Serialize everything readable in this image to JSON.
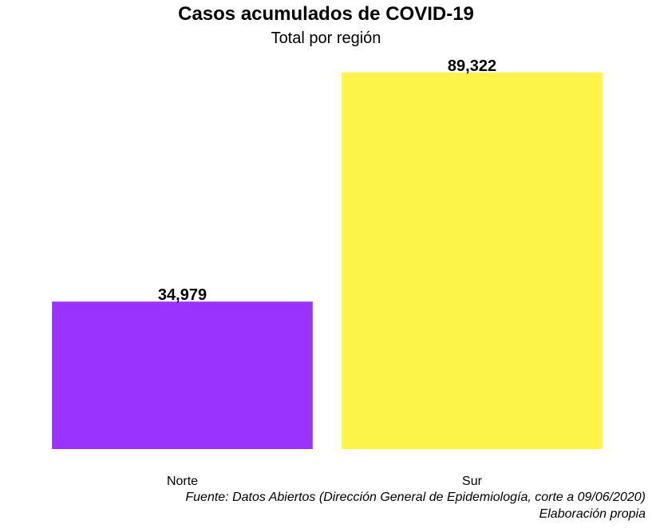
{
  "chart_data": {
    "type": "bar",
    "title": "Casos acumulados de COVID-19",
    "subtitle": "Total por región",
    "categories": [
      "Norte",
      "Sur"
    ],
    "values": [
      34979,
      89322
    ],
    "value_labels": [
      "34,979",
      "89,322"
    ],
    "colors": [
      "#9b33ff",
      "#fdf44a"
    ],
    "xlabel": "",
    "ylabel": "",
    "ylim": [
      0,
      89322
    ],
    "grid": false,
    "legend": "none",
    "caption": [
      "Fuente: Datos Abiertos (Dirección General de Epidemiología, corte a 09/06/2020)",
      "Elaboración propia"
    ]
  }
}
